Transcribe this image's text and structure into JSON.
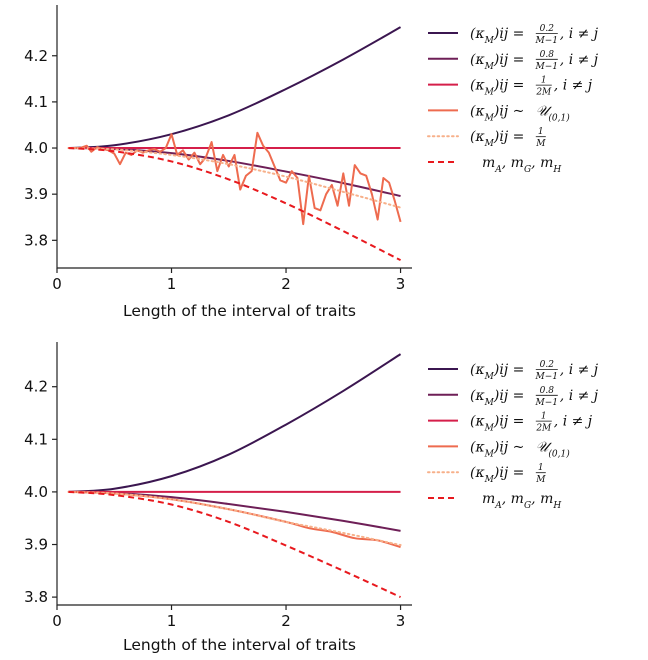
{
  "chart_data": [
    {
      "type": "line",
      "xlabel": "Length of the interval of traits",
      "ylabel": "",
      "xlim": [
        0,
        3.1
      ],
      "ylim": [
        3.74,
        4.31
      ],
      "xticks": [
        0,
        1,
        2,
        3
      ],
      "yticks": [
        3.8,
        3.9,
        4.0,
        4.1,
        4.2
      ],
      "ytick_labels": [
        "3.8",
        "3.9",
        "4.0",
        "4.1",
        "4.2"
      ],
      "grid": false,
      "legend_position": "right",
      "series": [
        {
          "name": "(κ_M)_ij = 0.2/(M−1), i ≠ j",
          "color": "#3b1650",
          "style": "solid",
          "x": [
            0.1,
            0.5,
            1.0,
            1.5,
            2.0,
            2.5,
            3.0
          ],
          "y": [
            4.0,
            4.006,
            4.03,
            4.071,
            4.128,
            4.192,
            4.262
          ]
        },
        {
          "name": "(κ_M)_ij = 0.8/(M−1), i ≠ j",
          "color": "#6e1f57",
          "style": "solid",
          "x": [
            0.1,
            0.5,
            1.0,
            1.5,
            2.0,
            2.5,
            3.0
          ],
          "y": [
            4.0,
            3.998,
            3.989,
            3.972,
            3.949,
            3.924,
            3.896
          ]
        },
        {
          "name": "(κ_M)_ij = 1/(2M), i ≠ j",
          "color": "#d51f4a",
          "style": "solid",
          "x": [
            0.1,
            3.0
          ],
          "y": [
            4.0,
            4.0
          ]
        },
        {
          "name": "(κ_M)_ij ~ U(0,1)",
          "color": "#ee6b4f",
          "style": "solid",
          "x": [
            0.1,
            0.2,
            0.26,
            0.3,
            0.35,
            0.4,
            0.45,
            0.5,
            0.55,
            0.6,
            0.65,
            0.7,
            0.75,
            0.8,
            0.85,
            0.9,
            0.95,
            1.0,
            1.05,
            1.1,
            1.15,
            1.2,
            1.25,
            1.3,
            1.35,
            1.4,
            1.45,
            1.5,
            1.55,
            1.6,
            1.65,
            1.7,
            1.75,
            1.8,
            1.85,
            1.9,
            1.95,
            2.0,
            2.05,
            2.1,
            2.15,
            2.2,
            2.25,
            2.3,
            2.35,
            2.4,
            2.45,
            2.5,
            2.55,
            2.6,
            2.65,
            2.7,
            2.75,
            2.8,
            2.85,
            2.9,
            2.95,
            3.0
          ],
          "y": [
            4.0,
            4.0,
            4.005,
            3.992,
            4.002,
            3.998,
            3.995,
            3.988,
            3.965,
            3.99,
            3.985,
            3.995,
            3.99,
            3.995,
            3.998,
            3.992,
            4.0,
            4.03,
            3.985,
            3.995,
            3.975,
            3.99,
            3.965,
            3.98,
            4.013,
            3.95,
            3.985,
            3.96,
            3.985,
            3.91,
            3.94,
            3.95,
            4.033,
            4.005,
            3.99,
            3.96,
            3.93,
            3.925,
            3.95,
            3.935,
            3.835,
            3.94,
            3.87,
            3.865,
            3.9,
            3.92,
            3.875,
            3.945,
            3.875,
            3.963,
            3.945,
            3.94,
            3.9,
            3.845,
            3.935,
            3.925,
            3.885,
            3.84
          ]
        },
        {
          "name": "(κ_M)_ij = 1/M",
          "color": "#f7b08a",
          "style": "dotted",
          "x": [
            0.1,
            0.5,
            1.0,
            1.5,
            2.0,
            2.5,
            3.0
          ],
          "y": [
            4.0,
            3.997,
            3.985,
            3.965,
            3.938,
            3.905,
            3.871
          ]
        },
        {
          "name": "m_A, m_G, m_H",
          "color": "#e8191e",
          "style": "dashed",
          "x": [
            0.1,
            0.5,
            1.0,
            1.5,
            2.0,
            2.5,
            3.0
          ],
          "y": [
            4.0,
            3.993,
            3.971,
            3.932,
            3.88,
            3.82,
            3.757
          ]
        }
      ]
    },
    {
      "type": "line",
      "xlabel": "Length of the interval of traits",
      "ylabel": "",
      "xlim": [
        0,
        3.1
      ],
      "ylim": [
        3.785,
        4.285
      ],
      "xticks": [
        0,
        1,
        2,
        3
      ],
      "yticks": [
        3.8,
        3.9,
        4.0,
        4.1,
        4.2
      ],
      "ytick_labels": [
        "3.8",
        "3.9",
        "4.0",
        "4.1",
        "4.2"
      ],
      "grid": false,
      "legend_position": "right",
      "series": [
        {
          "name": "(κ_M)_ij = 0.2/(M−1), i ≠ j",
          "color": "#3b1650",
          "style": "solid",
          "x": [
            0.1,
            0.5,
            1.0,
            1.5,
            2.0,
            2.5,
            3.0
          ],
          "y": [
            4.0,
            4.006,
            4.03,
            4.071,
            4.128,
            4.192,
            4.262
          ]
        },
        {
          "name": "(κ_M)_ij = 0.8/(M−1), i ≠ j",
          "color": "#6e1f57",
          "style": "solid",
          "x": [
            0.1,
            0.5,
            1.0,
            1.5,
            2.0,
            2.5,
            3.0
          ],
          "y": [
            4.0,
            3.998,
            3.99,
            3.977,
            3.962,
            3.945,
            3.926
          ]
        },
        {
          "name": "(κ_M)_ij = 1/(2M), i ≠ j",
          "color": "#d51f4a",
          "style": "solid",
          "x": [
            0.1,
            3.0
          ],
          "y": [
            4.0,
            4.0
          ]
        },
        {
          "name": "(κ_M)_ij ~ U(0,1)",
          "color": "#ee6b4f",
          "style": "solid",
          "x": [
            0.1,
            0.5,
            1.0,
            1.5,
            2.0,
            2.2,
            2.4,
            2.6,
            2.8,
            3.0
          ],
          "y": [
            4.0,
            3.997,
            3.986,
            3.967,
            3.943,
            3.931,
            3.924,
            3.912,
            3.908,
            3.895
          ]
        },
        {
          "name": "(κ_M)_ij = 1/M",
          "color": "#f7b08a",
          "style": "dotted",
          "x": [
            0.1,
            0.5,
            1.0,
            1.5,
            2.0,
            2.5,
            3.0
          ],
          "y": [
            4.0,
            3.997,
            3.986,
            3.967,
            3.943,
            3.922,
            3.899
          ]
        },
        {
          "name": "m_A, m_G, m_H",
          "color": "#e8191e",
          "style": "dashed",
          "x": [
            0.1,
            0.5,
            1.0,
            1.5,
            2.0,
            2.5,
            3.0
          ],
          "y": [
            4.0,
            3.994,
            3.976,
            3.943,
            3.898,
            3.85,
            3.8
          ]
        }
      ]
    }
  ],
  "legend": {
    "entries": [
      {
        "lhs": "(κ",
        "sub": "M",
        "rhs": ")ij = ",
        "frac_num": "0.2",
        "frac_den": "M−1",
        "tail": ",  i ≠ j"
      },
      {
        "lhs": "(κ",
        "sub": "M",
        "rhs": ")ij = ",
        "frac_num": "0.8",
        "frac_den": "M−1",
        "tail": ",  i ≠ j"
      },
      {
        "lhs": "(κ",
        "sub": "M",
        "rhs": ")ij = ",
        "frac_num": "1",
        "frac_den": "2M",
        "tail": ",  i ≠ j"
      },
      {
        "lhs": "(κ",
        "sub": "M",
        "rhs": ")ij ~ ",
        "frac_num": "",
        "frac_den": "",
        "tail": "𝒰",
        "tail_sub": "(0,1)"
      },
      {
        "lhs": "(κ",
        "sub": "M",
        "rhs": ")ij = ",
        "frac_num": "1",
        "frac_den": "M",
        "tail": ""
      },
      {
        "lhs": "m",
        "sub": "A",
        "rhs": ", m",
        "sub2": "G",
        "rhs2": ", m",
        "sub3": "H"
      }
    ]
  }
}
